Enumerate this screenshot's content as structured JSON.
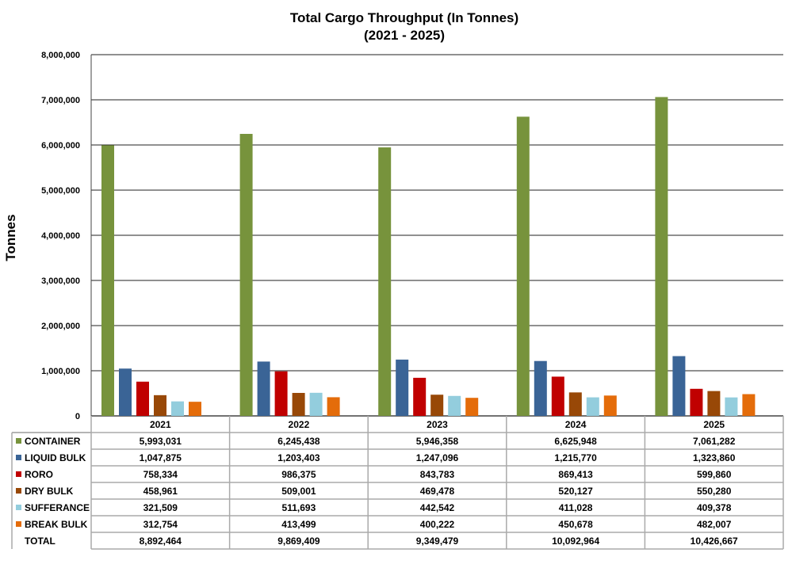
{
  "chart_data": {
    "type": "bar",
    "title": "Total Cargo Throughput (In Tonnes)",
    "subtitle": "(2021 - 2025)",
    "xlabel": "",
    "ylabel": "Tonnes",
    "ylim": [
      0,
      8000000
    ],
    "yticks": [
      0,
      1000000,
      2000000,
      3000000,
      4000000,
      5000000,
      6000000,
      7000000,
      8000000
    ],
    "ytick_labels": [
      "0",
      "1,000,000",
      "2,000,000",
      "3,000,000",
      "4,000,000",
      "5,000,000",
      "6,000,000",
      "7,000,000",
      "8,000,000"
    ],
    "grid": true,
    "legend": "data-table",
    "categories": [
      "2021",
      "2022",
      "2023",
      "2024",
      "2025"
    ],
    "series": [
      {
        "name": "CONTAINER",
        "color": "#77933c",
        "values": [
          5993031,
          6245438,
          5946358,
          6625948,
          7061282
        ],
        "labels": [
          "5,993,031",
          "6,245,438",
          "5,946,358",
          "6,625,948",
          "7,061,282"
        ]
      },
      {
        "name": "LIQUID BULK",
        "color": "#3a6496",
        "values": [
          1047875,
          1203403,
          1247096,
          1215770,
          1323860
        ],
        "labels": [
          "1,047,875",
          "1,203,403",
          "1,247,096",
          "1,215,770",
          "1,323,860"
        ]
      },
      {
        "name": "RORO",
        "color": "#c00000",
        "values": [
          758334,
          986375,
          843783,
          869413,
          599860
        ],
        "labels": [
          "758,334",
          "986,375",
          "843,783",
          "869,413",
          "599,860"
        ]
      },
      {
        "name": "DRY BULK",
        "color": "#984807",
        "values": [
          458961,
          509001,
          469478,
          520127,
          550280
        ],
        "labels": [
          "458,961",
          "509,001",
          "469,478",
          "520,127",
          "550,280"
        ]
      },
      {
        "name": "SUFFERANCE",
        "color": "#93cddd",
        "values": [
          321509,
          511693,
          442542,
          411028,
          409378
        ],
        "labels": [
          "321,509",
          "511,693",
          "442,542",
          "411,028",
          "409,378"
        ]
      },
      {
        "name": "BREAK BULK",
        "color": "#e46c0a",
        "values": [
          312754,
          413499,
          400222,
          450678,
          482007
        ],
        "labels": [
          "312,754",
          "413,499",
          "400,222",
          "450,678",
          "482,007"
        ]
      }
    ],
    "total": {
      "name": "TOTAL",
      "values": [
        8892464,
        9869409,
        9349479,
        10092964,
        10426667
      ],
      "labels": [
        "8,892,464",
        "9,869,409",
        "9,349,479",
        "10,092,964",
        "10,426,667"
      ]
    }
  }
}
